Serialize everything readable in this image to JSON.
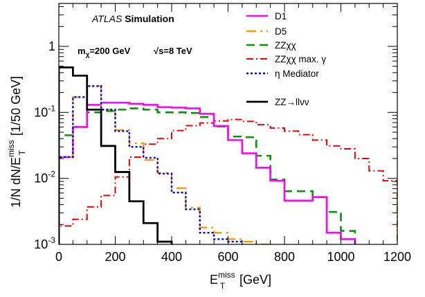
{
  "chart_data": {
    "type": "line",
    "drawstyle": "histogram-steps",
    "xlabel": {
      "main": "E",
      "sub": "T",
      "sup": "miss",
      "unit": "[GeV]"
    },
    "ylabel": {
      "prefix": "1/N dN/E",
      "sub": "T",
      "sup": "miss",
      "suffix": "[1/50 GeV]"
    },
    "xlim": [
      0,
      1200
    ],
    "ylim_log10": [
      -3,
      0.65
    ],
    "yscale": "log",
    "grid": false,
    "xticks": [
      0,
      200,
      400,
      600,
      800,
      1000,
      1200
    ],
    "xtick_labels": [
      "0",
      "200",
      "400",
      "600",
      "800",
      "1000",
      "1200"
    ],
    "yticks": [
      {
        "value": 1,
        "base": "1",
        "exp": ""
      },
      {
        "value": 0.1,
        "base": "10",
        "exp": "-1"
      },
      {
        "value": 0.01,
        "base": "10",
        "exp": "-2"
      },
      {
        "value": 0.001,
        "base": "10",
        "exp": "-3"
      }
    ],
    "bin_width": 50,
    "legend_position": "top-right",
    "annotations": {
      "atlas": "ATLAS",
      "atlas_suffix": "Simulation",
      "mass_label": "m",
      "mass_sub": "χ",
      "mass_value": "=200 GeV",
      "energy_label": "√s=8 TeV"
    },
    "series": [
      {
        "name": "D1",
        "color": "#ff00ff",
        "dash": "",
        "width": 2.6,
        "bin_edges": [
          0,
          50,
          100,
          150,
          200,
          250,
          300,
          350,
          400,
          450,
          500,
          550,
          600,
          650,
          700,
          750,
          800,
          850,
          900,
          950,
          1000,
          1050
        ],
        "values": [
          0.021,
          0.06,
          0.13,
          0.14,
          0.14,
          0.135,
          0.13,
          0.12,
          0.118,
          0.115,
          0.095,
          0.062,
          0.038,
          0.024,
          0.0145,
          0.0092,
          0.0046,
          0.0046,
          0.0052,
          0.0015,
          0.0012
        ]
      },
      {
        "name": "D5",
        "color": "#ff9900",
        "dash": "14,6,3,6",
        "width": 2.4,
        "bin_edges": [
          0,
          50,
          100,
          150,
          200,
          250,
          300,
          350,
          400,
          450,
          500,
          550,
          600,
          650,
          700,
          750
        ],
        "values": [
          0.021,
          0.17,
          0.25,
          0.11,
          0.054,
          0.034,
          0.019,
          0.0121,
          0.0071,
          0.0036,
          0.0018,
          0.0015,
          0.0012,
          0.0011,
          0.001
        ]
      },
      {
        "name": "ZZχχ",
        "color": "#009900",
        "dash": "12,7",
        "width": 2.6,
        "bin_edges": [
          0,
          50,
          100,
          150,
          200,
          250,
          300,
          350,
          400,
          450,
          500,
          550,
          600,
          650,
          700,
          750,
          800,
          850,
          900,
          950,
          1000,
          1050
        ],
        "values": [
          0.045,
          0.06,
          0.1,
          0.105,
          0.11,
          0.115,
          0.11,
          0.1,
          0.1,
          0.098,
          0.085,
          0.061,
          0.043,
          0.042,
          0.022,
          0.0096,
          0.0064,
          0.0064,
          0.0052,
          0.0031,
          0.0016
        ]
      },
      {
        "name": "ZZχχ max. γ",
        "color": "#ee0000",
        "dash": "10,4,2,4",
        "width": 2.0,
        "bin_edges": [
          0,
          50,
          100,
          150,
          200,
          250,
          300,
          350,
          400,
          450,
          500,
          550,
          600,
          650,
          700,
          750,
          800,
          850,
          900,
          950,
          1000,
          1050,
          1100,
          1150,
          1200
        ],
        "values": [
          0.0019,
          0.0024,
          0.0037,
          0.0055,
          0.0105,
          0.021,
          0.033,
          0.04,
          0.053,
          0.063,
          0.069,
          0.074,
          0.078,
          0.073,
          0.065,
          0.058,
          0.052,
          0.046,
          0.038,
          0.031,
          0.028,
          0.02,
          0.013,
          0.0092
        ]
      },
      {
        "name": "η Mediator",
        "color": "#0000ee",
        "dash": "3,3",
        "width": 2.4,
        "bin_edges": [
          0,
          50,
          100,
          150,
          200,
          250,
          300,
          350,
          400,
          450,
          500,
          550,
          600,
          650
        ],
        "values": [
          0.021,
          0.17,
          0.25,
          0.11,
          0.052,
          0.03,
          0.0205,
          0.0118,
          0.0061,
          0.0034,
          0.0015,
          0.0012,
          0.0011
        ]
      },
      {
        "name": "ZZ→llνν",
        "color": "#000000",
        "dash": "",
        "width": 2.8,
        "bin_edges": [
          0,
          50,
          100,
          150,
          200,
          250,
          300,
          350,
          400
        ],
        "values": [
          0.48,
          0.36,
          0.11,
          0.031,
          0.0125,
          0.0045,
          0.0021,
          0.0011
        ]
      }
    ]
  }
}
